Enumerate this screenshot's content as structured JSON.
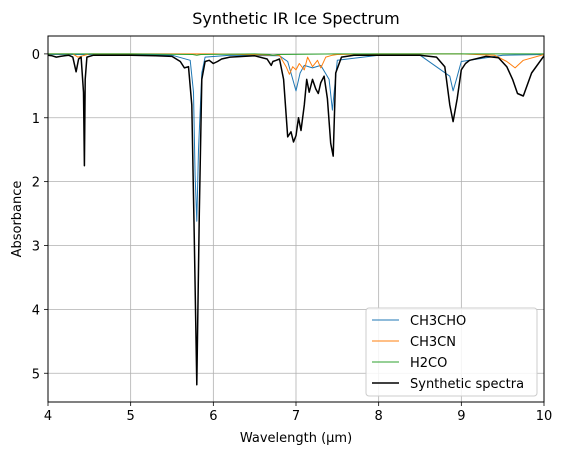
{
  "chart_data": {
    "type": "line",
    "title": "Synthetic IR Ice Spectrum",
    "xlabel": "Wavelength (μm)",
    "ylabel": "Absorbance",
    "xlim": [
      4,
      10
    ],
    "ylim": [
      5.45,
      -0.28
    ],
    "y_inverted": true,
    "grid": true,
    "legend_position": "lower-right",
    "x_ticks": [
      "4",
      "5",
      "6",
      "7",
      "8",
      "9",
      "10"
    ],
    "y_ticks": [
      "0",
      "1",
      "2",
      "3",
      "4",
      "5"
    ],
    "colors": {
      "CH3CHO": "#1f77b4",
      "CH3CN": "#ff7f0e",
      "H2CO": "#2ca02c",
      "Synthetic spectra": "#000000"
    },
    "series": [
      {
        "name": "CH3CHO",
        "x": [
          4.0,
          4.5,
          5.0,
          5.5,
          5.72,
          5.76,
          5.78,
          5.8,
          5.82,
          5.86,
          5.9,
          6.2,
          6.8,
          6.9,
          6.95,
          7.0,
          7.05,
          7.1,
          7.2,
          7.3,
          7.4,
          7.44,
          7.5,
          8.0,
          8.5,
          8.86,
          8.9,
          8.94,
          9.0,
          9.5,
          10.0
        ],
        "y": [
          0.01,
          0.01,
          0.01,
          0.02,
          0.1,
          0.6,
          1.9,
          2.62,
          1.5,
          0.3,
          0.05,
          0.02,
          0.03,
          0.12,
          0.35,
          0.58,
          0.3,
          0.18,
          0.22,
          0.18,
          0.4,
          0.88,
          0.1,
          0.02,
          0.02,
          0.35,
          0.58,
          0.4,
          0.12,
          0.02,
          0.01
        ]
      },
      {
        "name": "CH3CN",
        "x": [
          4.0,
          4.3,
          4.36,
          4.42,
          4.5,
          5.0,
          5.5,
          6.0,
          6.8,
          6.88,
          6.92,
          6.96,
          7.0,
          7.04,
          7.1,
          7.14,
          7.2,
          7.26,
          7.3,
          7.36,
          7.44,
          7.5,
          8.0,
          9.0,
          9.4,
          9.55,
          9.65,
          9.75,
          10.0
        ],
        "y": [
          0.0,
          0.0,
          0.05,
          0.03,
          0.0,
          0.0,
          0.0,
          0.0,
          0.02,
          0.2,
          0.32,
          0.2,
          0.25,
          0.15,
          0.25,
          0.05,
          0.2,
          0.1,
          0.22,
          0.05,
          0.02,
          0.01,
          0.0,
          0.0,
          0.02,
          0.12,
          0.22,
          0.1,
          0.01
        ]
      },
      {
        "name": "H2CO",
        "x": [
          4.0,
          5.0,
          5.75,
          5.8,
          5.85,
          6.5,
          6.68,
          6.72,
          6.78,
          7.5,
          8.0,
          8.9,
          9.0,
          10.0
        ],
        "y": [
          0.0,
          0.0,
          0.01,
          0.02,
          0.01,
          0.0,
          0.01,
          0.02,
          0.01,
          0.0,
          0.0,
          0.0,
          0.0,
          0.0
        ]
      },
      {
        "name": "Synthetic spectra",
        "x": [
          4.0,
          4.05,
          4.1,
          4.15,
          4.2,
          4.25,
          4.3,
          4.34,
          4.37,
          4.4,
          4.43,
          4.44,
          4.45,
          4.47,
          4.55,
          4.7,
          5.0,
          5.3,
          5.5,
          5.6,
          5.65,
          5.7,
          5.74,
          5.77,
          5.8,
          5.83,
          5.86,
          5.9,
          5.95,
          6.0,
          6.05,
          6.1,
          6.2,
          6.5,
          6.65,
          6.7,
          6.72,
          6.76,
          6.8,
          6.85,
          6.9,
          6.94,
          6.97,
          7.0,
          7.03,
          7.06,
          7.1,
          7.13,
          7.16,
          7.2,
          7.24,
          7.27,
          7.3,
          7.34,
          7.38,
          7.42,
          7.45,
          7.48,
          7.55,
          7.7,
          7.9,
          8.2,
          8.5,
          8.7,
          8.8,
          8.86,
          8.9,
          8.95,
          9.0,
          9.05,
          9.1,
          9.3,
          9.45,
          9.55,
          9.62,
          9.68,
          9.75,
          9.85,
          10.0
        ],
        "y": [
          0.02,
          0.03,
          0.05,
          0.04,
          0.03,
          0.02,
          0.05,
          0.28,
          0.08,
          0.05,
          0.6,
          1.75,
          0.4,
          0.05,
          0.02,
          0.02,
          0.02,
          0.03,
          0.04,
          0.12,
          0.22,
          0.2,
          0.8,
          2.9,
          5.18,
          2.5,
          0.4,
          0.12,
          0.1,
          0.15,
          0.12,
          0.08,
          0.05,
          0.03,
          0.08,
          0.18,
          0.12,
          0.1,
          0.08,
          0.4,
          1.3,
          1.22,
          1.38,
          1.28,
          1.0,
          1.2,
          0.8,
          0.4,
          0.6,
          0.4,
          0.55,
          0.62,
          0.45,
          0.35,
          0.7,
          1.4,
          1.6,
          0.3,
          0.05,
          0.02,
          0.02,
          0.02,
          0.02,
          0.05,
          0.2,
          0.8,
          1.06,
          0.7,
          0.25,
          0.15,
          0.1,
          0.04,
          0.06,
          0.2,
          0.4,
          0.62,
          0.66,
          0.3,
          0.03
        ]
      }
    ]
  }
}
